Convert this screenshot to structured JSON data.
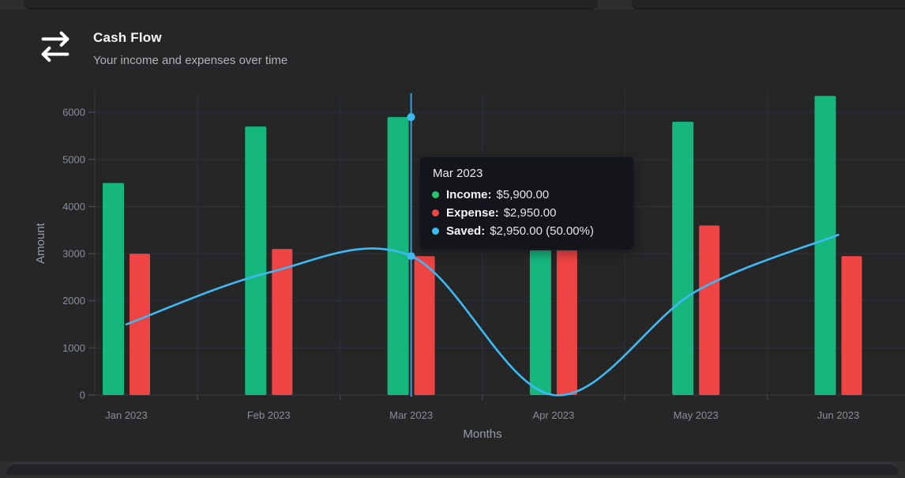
{
  "header": {
    "title": "Cash Flow",
    "subtitle": "Your income and expenses over time",
    "icon": "transfer-arrows-icon"
  },
  "chart_data": {
    "type": "combo",
    "categories": [
      "Jan 2023",
      "Feb 2023",
      "Mar 2023",
      "Apr 2023",
      "May 2023",
      "Jun 2023"
    ],
    "series": [
      {
        "name": "Income",
        "type": "bar",
        "color": "#15b77d",
        "values": [
          4500,
          5700,
          5900,
          3100,
          5800,
          6350
        ]
      },
      {
        "name": "Expense",
        "type": "bar",
        "color": "#ef4444",
        "values": [
          3000,
          3100,
          2950,
          3100,
          3600,
          2950
        ]
      },
      {
        "name": "Saved",
        "type": "line",
        "color": "#3db9f4",
        "values": [
          1500,
          2600,
          2950,
          0,
          2200,
          3400
        ]
      }
    ],
    "xlabel": "Months",
    "ylabel": "Amount",
    "ylim": [
      0,
      6000
    ],
    "yticks": [
      0,
      1000,
      2000,
      3000,
      4000,
      5000,
      6000
    ],
    "grid": true,
    "legend_position": "none",
    "highlight": {
      "category": "Mar 2023",
      "index": 2
    }
  },
  "tooltip": {
    "title": "Mar 2023",
    "rows": [
      {
        "label": "Income:",
        "value": "$5,900.00",
        "color": "#25c56a"
      },
      {
        "label": "Expense:",
        "value": "$2,950.00",
        "color": "#ef4444"
      },
      {
        "label": "Saved:",
        "value": "$2,950.00 (50.00%)",
        "color": "#38bdf8"
      }
    ]
  },
  "colors": {
    "page_bg": "#2e2e2e",
    "card_bg": "#262626",
    "grid_line": "#2c3140",
    "axis_line": "#363b47",
    "tick_mark": "#4a505c",
    "tick_label": "#878d9d",
    "axis_name": "#969cb0",
    "crosshair": "#39a9e8",
    "title_text": "#f5f6f8",
    "subtitle_text": "#aeb3bd"
  }
}
